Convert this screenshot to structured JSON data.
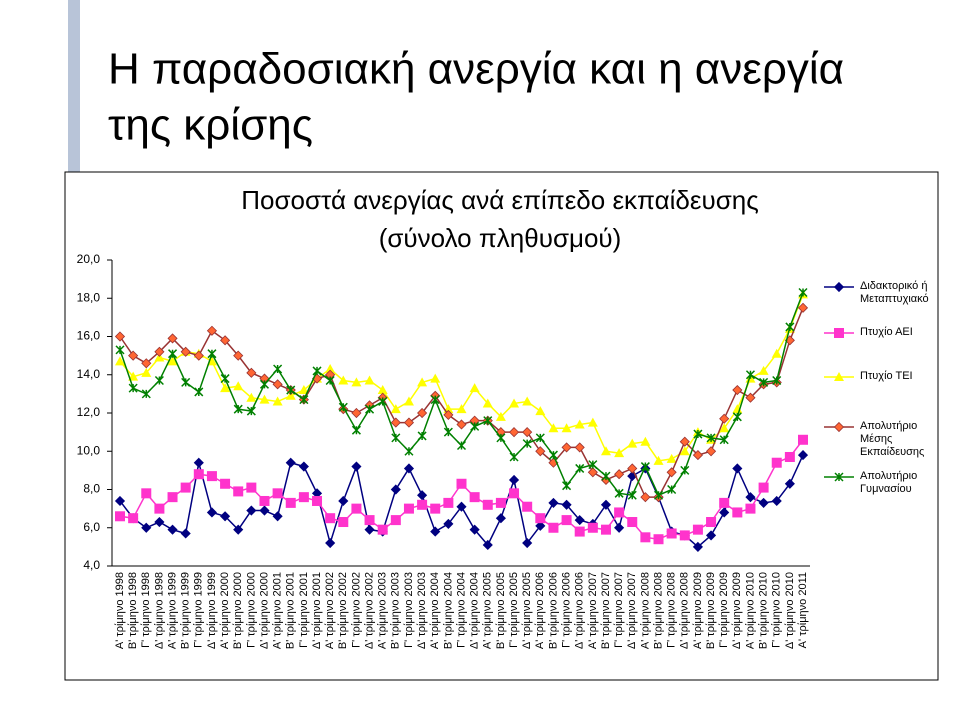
{
  "slide_title": [
    "Η παραδοσιακή ανεργία και η ανεργία",
    "της κρίσης"
  ],
  "chart_data": {
    "type": "line",
    "title": [
      "Ποσοστά ανεργίας ανά επίπεδο εκπαίδευσης",
      "(σύνολο πληθυσμού)"
    ],
    "categories": [
      "Α' τρίμηνο 1998",
      "Β' τρίμηνο 1998",
      "Γ' τρίμηνο 1998",
      "Δ' τρίμηνο 1998",
      "Α' τρίμηνο 1999",
      "Β' τρίμηνο 1999",
      "Γ' τρίμηνο 1999",
      "Δ' τρίμηνο 1999",
      "Α' τρίμηνο 2000",
      "Β' τρίμηνο 2000",
      "Γ' τρίμηνο 2000",
      "Δ' τρίμηνο 2000",
      "Α' τρίμηνο 2001",
      "Β' τρίμηνο 2001",
      "Γ' τρίμηνο 2001",
      "Δ' τρίμηνο 2001",
      "Α' τρίμηνο 2002",
      "Β' τρίμηνο 2002",
      "Γ' τρίμηνο 2002",
      "Δ' τρίμηνο 2002",
      "Α' τρίμηνο 2003",
      "Β' τρίμηνο 2003",
      "Γ' τρίμηνο 2003",
      "Δ' τρίμηνο 2003",
      "Α' τρίμηνο 2004",
      "Β' τρίμηνο 2004",
      "Γ' τρίμηνο 2004",
      "Δ' τρίμηνο 2004",
      "Α' τρίμηνο 2005",
      "Β' τρίμηνο 2005",
      "Γ' τρίμηνο 2005",
      "Δ' τρίμηνο 2005",
      "Α' τρίμηνο 2006",
      "Β' τρίμηνο 2006",
      "Γ' τρίμηνο 2006",
      "Δ' τρίμηνο 2006",
      "Α' τρίμηνο 2007",
      "Β' τρίμηνο 2007",
      "Γ' τρίμηνο 2007",
      "Δ' τρίμηνο 2007",
      "Α' τρίμηνο 2008",
      "Β' τρίμηνο 2008",
      "Γ' τρίμηνο 2008",
      "Δ' τρίμηνο 2008",
      "Α' τρίμηνο 2009",
      "Β' τρίμηνο 2009",
      "Γ' τρίμηνο 2009",
      "Δ' τρίμηνο 2009",
      "Α' τρίμηνο 2010",
      "Β' τρίμηνο 2010",
      "Γ' τρίμηνο 2010",
      "Δ' τρίμηνο 2010",
      "Α' τρίμηνο 2011"
    ],
    "series": [
      {
        "name": "Διδακτορικό ή Μεταπτυχιακό",
        "color": "#000080",
        "marker": "diamond",
        "marker_color": "#000080",
        "values": [
          7.4,
          6.5,
          6.0,
          6.3,
          5.9,
          5.7,
          9.4,
          6.8,
          6.6,
          5.9,
          6.9,
          6.9,
          6.6,
          9.4,
          9.2,
          7.8,
          5.2,
          7.4,
          9.2,
          5.9,
          5.8,
          8.0,
          9.1,
          7.7,
          5.8,
          6.2,
          7.1,
          5.9,
          5.1,
          6.5,
          8.5,
          5.2,
          6.1,
          7.3,
          7.2,
          6.4,
          6.2,
          7.2,
          6.0,
          8.7,
          9.1,
          7.6,
          5.8,
          5.6,
          5.0,
          5.6,
          6.8,
          9.1,
          7.6,
          7.3,
          7.4,
          8.3,
          9.8
        ]
      },
      {
        "name": "Πτυχίο ΑΕΙ",
        "color": "#ff33cc",
        "marker": "square",
        "marker_color": "#ff33cc",
        "values": [
          6.6,
          6.5,
          7.8,
          7.0,
          7.6,
          8.1,
          8.8,
          8.7,
          8.3,
          7.9,
          8.1,
          7.4,
          7.8,
          7.3,
          7.6,
          7.4,
          6.5,
          6.3,
          7.0,
          6.4,
          5.9,
          6.4,
          7.0,
          7.2,
          7.0,
          7.3,
          8.3,
          7.6,
          7.2,
          7.3,
          7.8,
          7.1,
          6.5,
          6.0,
          6.4,
          5.8,
          6.0,
          5.9,
          6.8,
          6.3,
          5.5,
          5.4,
          5.7,
          5.6,
          5.9,
          6.3,
          7.3,
          6.8,
          7.0,
          8.1,
          9.4,
          9.7,
          10.6
        ]
      },
      {
        "name": "Πτυχίο ΤΕΙ",
        "color": "#ffff00",
        "marker": "triangle",
        "marker_color": "#ffff00",
        "values": [
          14.7,
          13.9,
          14.1,
          14.9,
          14.7,
          15.2,
          15.1,
          14.7,
          13.3,
          13.4,
          12.8,
          12.7,
          12.6,
          12.9,
          13.2,
          13.8,
          14.3,
          13.7,
          13.6,
          13.7,
          13.2,
          12.2,
          12.6,
          13.6,
          13.8,
          12.2,
          12.2,
          13.3,
          12.5,
          11.8,
          12.5,
          12.6,
          12.1,
          11.2,
          11.2,
          11.4,
          11.5,
          10.0,
          9.9,
          10.4,
          10.5,
          9.5,
          9.6,
          10.0,
          11.0,
          10.6,
          11.2,
          12.2,
          13.8,
          14.2,
          15.1,
          16.4,
          18.2
        ]
      },
      {
        "name": "Απολυτήριο Μέσης Εκπαίδευσης",
        "color": "#993333",
        "marker": "diamond",
        "marker_color": "#ff6633",
        "values": [
          16.0,
          15.0,
          14.6,
          15.2,
          15.9,
          15.2,
          15.0,
          16.3,
          15.8,
          15.0,
          14.1,
          13.8,
          13.5,
          13.2,
          12.7,
          13.8,
          14.0,
          12.2,
          12.0,
          12.4,
          12.8,
          11.5,
          11.5,
          12.0,
          12.9,
          11.9,
          11.4,
          11.6,
          11.6,
          11.0,
          11.0,
          11.0,
          10.0,
          9.4,
          10.2,
          10.2,
          8.9,
          8.5,
          8.8,
          9.1,
          7.6,
          7.6,
          8.9,
          10.5,
          9.8,
          10.0,
          11.7,
          13.2,
          12.8,
          13.5,
          13.6,
          15.8,
          17.5
        ]
      },
      {
        "name": "Απολυτήριο Γυμνασίου",
        "color": "#008000",
        "marker": "x",
        "marker_color": "#008000",
        "values": [
          15.3,
          13.3,
          13.0,
          13.7,
          15.1,
          13.6,
          13.1,
          15.1,
          13.8,
          12.2,
          12.1,
          13.5,
          14.3,
          13.2,
          12.7,
          14.2,
          13.7,
          12.3,
          11.1,
          12.2,
          12.6,
          10.7,
          10.0,
          10.8,
          12.7,
          11.0,
          10.3,
          11.3,
          11.6,
          10.7,
          9.7,
          10.4,
          10.7,
          9.8,
          8.2,
          9.1,
          9.3,
          8.7,
          7.8,
          7.7,
          9.2,
          7.7,
          8.0,
          9.0,
          10.9,
          10.7,
          10.6,
          11.8,
          14.0,
          13.6,
          13.7,
          16.5,
          18.3
        ]
      }
    ],
    "ylim": [
      4,
      20
    ],
    "yticks": [
      {
        "value": 4,
        "label": "4,0"
      },
      {
        "value": 6,
        "label": "6,0"
      },
      {
        "value": 8,
        "label": "8,0"
      },
      {
        "value": 10,
        "label": "10,0"
      },
      {
        "value": 12,
        "label": "12,0"
      },
      {
        "value": 14,
        "label": "14,0"
      },
      {
        "value": 16,
        "label": "16,0"
      },
      {
        "value": 18,
        "label": "18,0"
      },
      {
        "value": 20,
        "label": "20,0"
      }
    ],
    "grid": false,
    "legend": "right"
  }
}
